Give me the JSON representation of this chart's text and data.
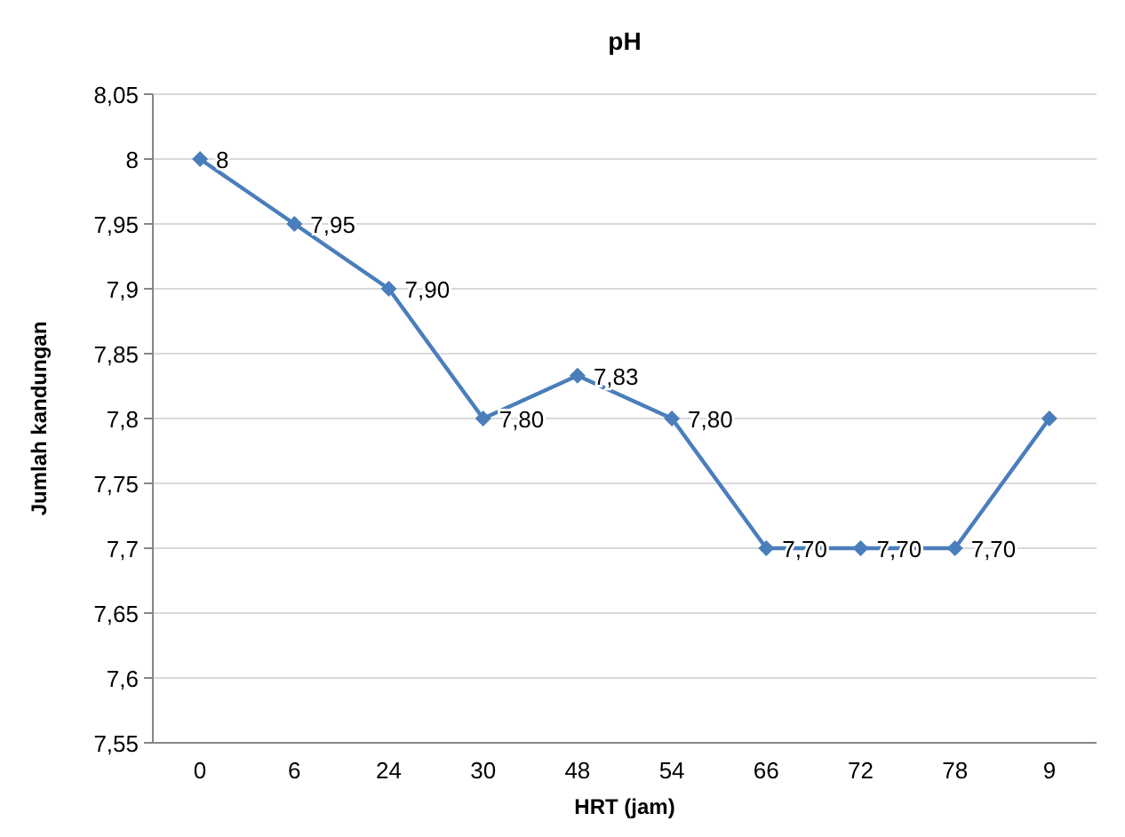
{
  "chart_data": {
    "type": "line",
    "title": "pH",
    "xlabel": "HRT (jam)",
    "ylabel": "Jumlah kandungan",
    "categories": [
      "0",
      "6",
      "24",
      "30",
      "48",
      "54",
      "66",
      "72",
      "78",
      "9"
    ],
    "series": [
      {
        "color": "#4a7ebb",
        "values": [
          8,
          7.95,
          7.9,
          7.8,
          7.833,
          7.8,
          7.7,
          7.7,
          7.7,
          7.8
        ],
        "value_labels": [
          "8",
          "7,95",
          "7,90",
          "7,80",
          "7,83",
          "7,80",
          "7,70",
          "7,70",
          "7,70",
          null
        ]
      }
    ],
    "ylim": [
      7.55,
      8.05
    ],
    "yticks": [
      {
        "value": 7.55,
        "label": "7,55"
      },
      {
        "value": 7.6,
        "label": "7,6"
      },
      {
        "value": 7.65,
        "label": "7,65"
      },
      {
        "value": 7.7,
        "label": "7,7"
      },
      {
        "value": 7.75,
        "label": "7,75"
      },
      {
        "value": 7.8,
        "label": "7,8"
      },
      {
        "value": 7.85,
        "label": "7,85"
      },
      {
        "value": 7.9,
        "label": "7,9"
      },
      {
        "value": 7.95,
        "label": "7,95"
      },
      {
        "value": 8,
        "label": "8"
      },
      {
        "value": 8.05,
        "label": "8,05"
      }
    ],
    "grid": "y",
    "marker": "diamond",
    "line_style": "solid"
  }
}
